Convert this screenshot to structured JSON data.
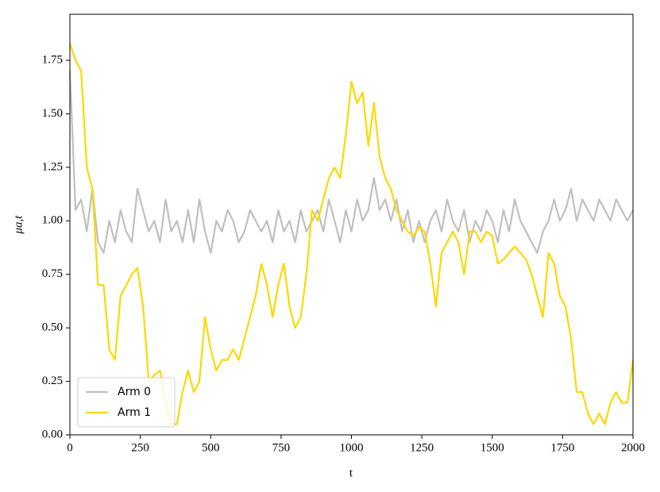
{
  "chart_data": {
    "type": "line",
    "xlabel": "t",
    "ylabel": "μa,t",
    "x": [
      0,
      20,
      40,
      60,
      80,
      100,
      120,
      140,
      160,
      180,
      200,
      220,
      240,
      260,
      280,
      300,
      320,
      340,
      360,
      380,
      400,
      420,
      440,
      460,
      480,
      500,
      520,
      540,
      560,
      580,
      600,
      620,
      640,
      660,
      680,
      700,
      720,
      740,
      760,
      780,
      800,
      820,
      840,
      860,
      880,
      900,
      920,
      940,
      960,
      980,
      1000,
      1020,
      1040,
      1060,
      1080,
      1100,
      1120,
      1140,
      1160,
      1180,
      1200,
      1220,
      1240,
      1260,
      1280,
      1300,
      1320,
      1340,
      1360,
      1380,
      1400,
      1420,
      1440,
      1460,
      1480,
      1500,
      1520,
      1540,
      1560,
      1580,
      1600,
      1620,
      1640,
      1660,
      1680,
      1700,
      1720,
      1740,
      1760,
      1780,
      1800,
      1820,
      1840,
      1860,
      1880,
      1900,
      1920,
      1940,
      1960,
      1980,
      2000
    ],
    "series": [
      {
        "name": "Arm 0",
        "color": "#bfbfbf",
        "values": [
          1.7,
          1.05,
          1.1,
          0.95,
          1.15,
          0.9,
          0.85,
          1.0,
          0.9,
          1.05,
          0.95,
          0.9,
          1.15,
          1.05,
          0.95,
          1.0,
          0.9,
          1.1,
          0.95,
          1.0,
          0.9,
          1.05,
          0.9,
          1.1,
          0.95,
          0.85,
          1.0,
          0.95,
          1.05,
          1.0,
          0.9,
          0.95,
          1.05,
          1.0,
          0.95,
          1.0,
          0.9,
          1.05,
          0.95,
          1.0,
          0.9,
          1.05,
          0.95,
          1.0,
          1.05,
          0.95,
          1.1,
          1.0,
          0.9,
          1.05,
          0.95,
          1.1,
          1.0,
          1.05,
          1.2,
          1.05,
          1.1,
          1.0,
          1.1,
          0.95,
          1.05,
          0.9,
          1.0,
          0.9,
          1.0,
          1.05,
          0.95,
          1.1,
          1.0,
          0.95,
          1.05,
          0.9,
          1.0,
          0.95,
          1.05,
          1.0,
          0.9,
          1.05,
          0.95,
          1.1,
          1.0,
          0.95,
          0.9,
          0.85,
          0.95,
          1.0,
          1.1,
          1.0,
          1.05,
          1.15,
          1.0,
          1.1,
          1.05,
          1.0,
          1.1,
          1.05,
          1.0,
          1.1,
          1.05,
          1.0,
          1.05
        ]
      },
      {
        "name": "Arm 1",
        "color": "#ffd700",
        "values": [
          1.83,
          1.75,
          1.7,
          1.25,
          1.15,
          0.7,
          0.7,
          0.4,
          0.35,
          0.65,
          0.7,
          0.75,
          0.78,
          0.6,
          0.25,
          0.28,
          0.3,
          0.15,
          0.05,
          0.05,
          0.2,
          0.3,
          0.2,
          0.25,
          0.55,
          0.4,
          0.3,
          0.35,
          0.35,
          0.4,
          0.35,
          0.45,
          0.55,
          0.65,
          0.8,
          0.7,
          0.55,
          0.7,
          0.8,
          0.6,
          0.5,
          0.55,
          0.75,
          1.05,
          1.0,
          1.1,
          1.2,
          1.25,
          1.2,
          1.4,
          1.65,
          1.55,
          1.6,
          1.35,
          1.55,
          1.3,
          1.2,
          1.15,
          1.05,
          1.0,
          0.95,
          0.93,
          0.97,
          0.95,
          0.8,
          0.6,
          0.85,
          0.9,
          0.95,
          0.9,
          0.75,
          0.95,
          0.95,
          0.9,
          0.95,
          0.93,
          0.8,
          0.82,
          0.85,
          0.88,
          0.85,
          0.82,
          0.75,
          0.65,
          0.55,
          0.85,
          0.8,
          0.65,
          0.6,
          0.45,
          0.2,
          0.2,
          0.1,
          0.05,
          0.1,
          0.05,
          0.15,
          0.2,
          0.15,
          0.15,
          0.35
        ]
      }
    ],
    "xlim": [
      0,
      2000
    ],
    "xticks": [
      0,
      250,
      500,
      750,
      1000,
      1250,
      1500,
      1750,
      2000
    ],
    "ylim": [
      0,
      1.965
    ],
    "yticks": [
      {
        "value": 0,
        "label": "0.00"
      },
      0.25,
      {
        "value": 0.5,
        "label": "0.50"
      },
      0.75,
      {
        "value": 1,
        "label": "1.00"
      },
      1.25,
      {
        "value": 1.5,
        "label": "1.50"
      },
      1.75
    ],
    "legend": "lower left"
  }
}
